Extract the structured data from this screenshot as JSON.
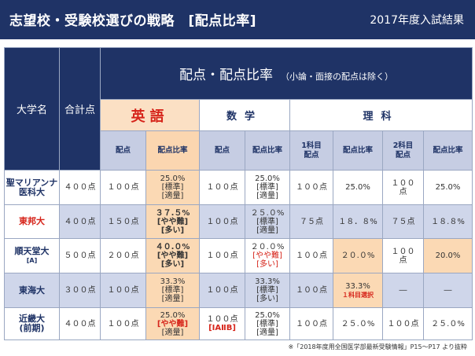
{
  "header": {
    "title": "志望校・受験校選びの戦略　[配点比率]",
    "subtitle": "2017年度入試結果"
  },
  "table": {
    "col_university": "大学名",
    "col_total": "合計点",
    "main_header": "配点・配点比率",
    "main_note": "（小論・面接の配点は除く）",
    "subjects": {
      "english": "英語",
      "math": "数学",
      "science": "理科"
    },
    "sub_headers": {
      "en_points": "配点",
      "en_ratio": "配点比率",
      "ma_points": "配点",
      "ma_ratio": "配点比率",
      "sci1_points_l1": "1科目",
      "sci1_points_l2": "配点",
      "sci1_ratio": "配点比率",
      "sci2_points_l1": "2科目",
      "sci2_points_l2": "配点",
      "sci2_ratio": "配点比率"
    },
    "rows": [
      {
        "univ_l1": "聖マリアンナ",
        "univ_l2": "医科大",
        "total": "４００点",
        "en_points": "１００点",
        "en_ratio_l1": "25.0%",
        "en_ratio_l2": "[標準]",
        "en_ratio_l3": "[適量]",
        "ma_points": "１００点",
        "ma_ratio_l1": "25.0%",
        "ma_ratio_l2": "[標準]",
        "ma_ratio_l3": "[適量]",
        "sci1_points": "１００点",
        "sci1_ratio": "25.0%",
        "sci2_points_l1": "１００",
        "sci2_points_l2": "点",
        "sci2_ratio": "25.0%"
      },
      {
        "univ_l1": "東邦大",
        "total": "４００点",
        "en_points": "１５０点",
        "en_ratio_l1": "３７.５%",
        "en_ratio_l2": "[やや難]",
        "en_ratio_l3": "[多い]",
        "ma_points": "１００点",
        "ma_ratio_l1": "２５.０%",
        "ma_ratio_l2": "[標準]",
        "ma_ratio_l3": "[適量]",
        "sci1_points": "７５点",
        "sci1_ratio": "１８．８%",
        "sci2_points": "７５点",
        "sci2_ratio": "１８.８%"
      },
      {
        "univ_l1": "順天堂大",
        "univ_l2": "[A]",
        "total": "５００点",
        "en_points": "２００点",
        "en_ratio_l1": "４０.０%",
        "en_ratio_l2": "[やや難]",
        "en_ratio_l3": "[多い]",
        "ma_points": "１００点",
        "ma_ratio_l1": "２０.０%",
        "ma_ratio_l2": "[やや難]",
        "ma_ratio_l3": "[多い]",
        "sci1_points": "１００点",
        "sci1_ratio": "２０.０%",
        "sci2_points_l1": "１００",
        "sci2_points_l2": "点",
        "sci2_ratio": "20.0%"
      },
      {
        "univ_l1": "東海大",
        "total": "３００点",
        "en_points": "１００点",
        "en_ratio_l1": "33.3%",
        "en_ratio_l2": "[標準]",
        "en_ratio_l3": "[適量]",
        "ma_points": "１００点",
        "ma_ratio_l1": "33.3%",
        "ma_ratio_l2": "[標準]",
        "ma_ratio_l3": "[多い]",
        "sci1_points": "１００点",
        "sci1_ratio_l1": "33.3%",
        "sci1_ratio_l2": "１科目選択",
        "sci2_points": "―",
        "sci2_ratio": "―"
      },
      {
        "univ_l1": "近畿大",
        "univ_l2": "(前期)",
        "total": "４００点",
        "en_points": "１００点",
        "en_ratio_l1": "25.0%",
        "en_ratio_l2": "[やや難]",
        "en_ratio_l3": "[適量]",
        "ma_points_l1": "１００点",
        "ma_points_l2": "[ⅠAⅡB]",
        "ma_ratio_l1": "25.0%",
        "ma_ratio_l2": "[標準]",
        "ma_ratio_l3": "[適量]",
        "sci1_points": "１００点",
        "sci1_ratio": "２５.０%",
        "sci2_points": "１００点",
        "sci2_ratio": "２５.０%"
      }
    ]
  },
  "footnote": "※「2018年度用全国医学部最新受験情報」P15～P17 より抜粋",
  "colors": {
    "navy": "#1f3366",
    "accent_red": "#d6241a",
    "peach": "#fbd9b4",
    "lavender": "#cfd6ea"
  }
}
